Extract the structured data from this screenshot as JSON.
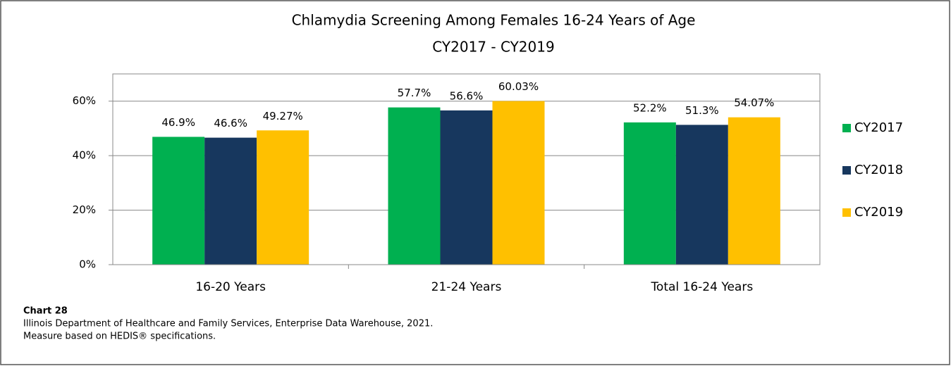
{
  "chart_data": {
    "type": "bar",
    "title": "Chlamydia Screening Among Females 16-24 Years of Age",
    "subtitle": "CY2017 - CY2019",
    "categories": [
      "16-20 Years",
      "21-24 Years",
      "Total 16-24 Years"
    ],
    "series": [
      {
        "name": "CY2017",
        "color": "#00b050",
        "values": [
          46.9,
          57.7,
          52.2
        ],
        "value_labels": [
          "46.9%",
          "57.7%",
          "52.2%"
        ]
      },
      {
        "name": "CY2018",
        "color": "#17375e",
        "values": [
          46.6,
          56.6,
          51.3
        ],
        "value_labels": [
          "46.6%",
          "56.6%",
          "51.3%"
        ]
      },
      {
        "name": "CY2019",
        "color": "#ffc000",
        "values": [
          49.27,
          60.03,
          54.07
        ],
        "value_labels": [
          "49.27%",
          "60.03%",
          "54.07%"
        ]
      }
    ],
    "ylim": [
      0,
      70
    ],
    "yticks": [
      {
        "value": 0,
        "label": "0%"
      },
      {
        "value": 20,
        "label": "20%"
      },
      {
        "value": 40,
        "label": "40%"
      },
      {
        "value": 60,
        "label": "60%"
      }
    ],
    "grid": true,
    "legend": "right",
    "chart_label": "Chart 28",
    "source": [
      "Illinois  Department of Healthcare and Family Services, Enterprise Data Warehouse, 2021.",
      "Measure based on HEDIS® specifications."
    ]
  }
}
